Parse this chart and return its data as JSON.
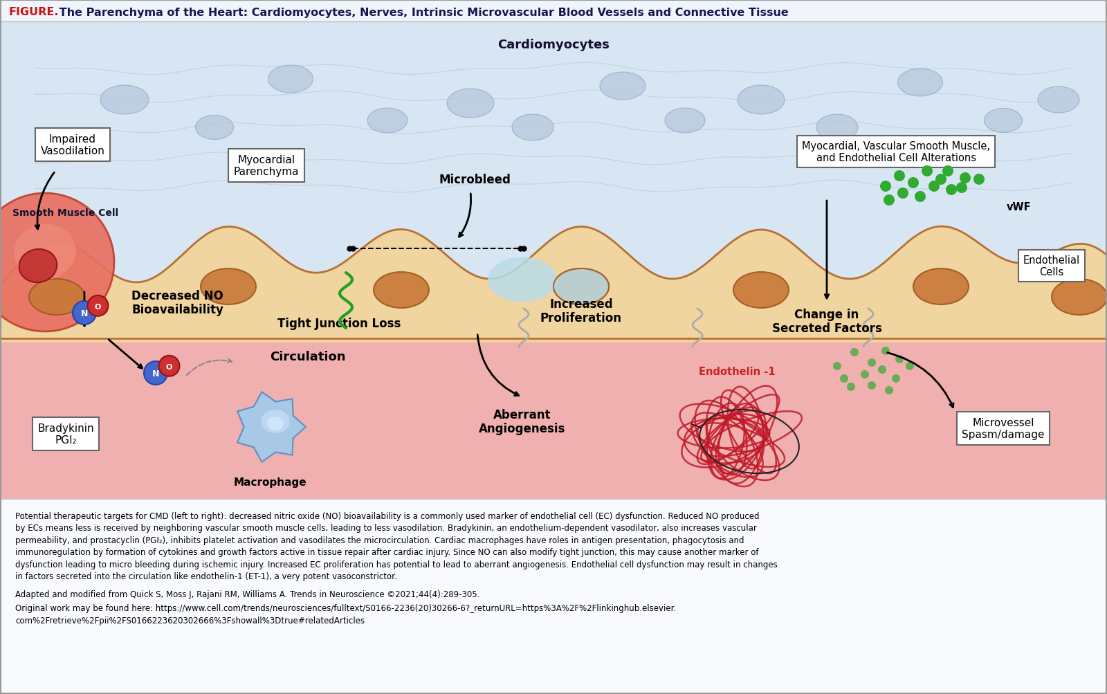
{
  "title_figure": "FIGURE.",
  "title_text": " The Parenchyma of the Heart: Cardiomyocytes, Nerves, Intrinsic Microvascular Blood Vessels and Connective Tissue",
  "bg_top": "#dce8f5",
  "bg_circ": "#f0b0b0",
  "bg_white": "#f8fafd",
  "cardiomyocyte_label": "Cardiomyocytes",
  "smooth_muscle_label": "Smooth Muscle Cell",
  "impaired_vasodilation": "Impaired\nVasodilation",
  "myocardial_parenchyma": "Myocardial\nParenchyma",
  "microbleed": "Microbleed",
  "tight_junction": "Tight Junction Loss",
  "increased_prolif": "Increased\nProliferation",
  "change_secreted": "Change in\nSecreted Factors",
  "myocardial_vascular": "Myocardial, Vascular Smooth Muscle,\nand Endothelial Cell Alterations",
  "decreased_NO": "Decreased NO\nBioavailability",
  "bradykinin": "Bradykinin\nPGI₂",
  "circulation": "Circulation",
  "macrophage": "Macrophage",
  "aberrant_angio": "Aberrant\nAngiogenesis",
  "endothelin": "Endothelin -1",
  "microvessel": "Microvessel\nSpasm/damage",
  "vwf": "vWF",
  "endothelial_cells": "Endothelial\nCells",
  "caption_line1": "Potential therapeutic targets for CMD (left to right): decreased nitric oxide (NO) bioavailability is a commonly used marker of endothelial cell (EC) dysfunction. Reduced NO produced",
  "caption_line2": "by ECs means less is received by neighboring vascular smooth muscle cells, leading to less vasodilation. Bradykinin, an endothelium-dependent vasodilator, also increases vascular",
  "caption_line3": "permeability, and prostacyclin (PGI₂), inhibits platelet activation and vasodilates the microcirculation. Cardiac macrophages have roles in antigen presentation, phagocytosis and",
  "caption_line4": "immunoregulation by formation of cytokines and growth factors active in tissue repair after cardiac injury. Since NO can also modify tight junction, this may cause another marker of",
  "caption_line5": "dysfunction leading to micro bleeding during ischemic injury. Increased EC proliferation has potential to lead to aberrant angiogenesis. Endothelial cell dysfunction may result in changes",
  "caption_line6": "in factors secreted into the circulation like endothelin-1 (ET-1), a very potent vasoconstrictor.",
  "adapted": "Adapted and modified from Quick S, Moss J, Rajani RM, Williams A. Trends in Neuroscience ©2021;44(4):289-305.",
  "original_line1": "Original work may be found here: https://www.cell.com/trends/neurosciences/fulltext/S0166-2236(20)30266-6?_returnURL=https%3A%2F%2Flinkinghub.elsevier.",
  "original_line2": "com%2Fretrieve%2Fpii%2FS0166223620302666%3Fshowall%3Dtrue#relatedArticles"
}
